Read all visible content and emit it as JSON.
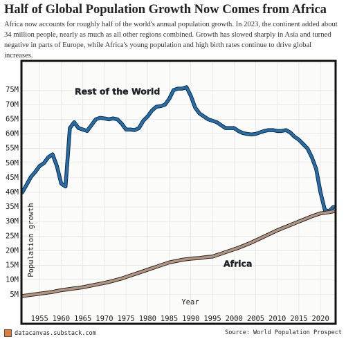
{
  "chart_data": {
    "type": "line",
    "title": "Half of Global Population Growth Now Comes from Africa",
    "subtitle": "Africa now accounts for roughly half of the world's annual population growth. In 2023, the continent added about 34 million people, nearly as much as all other regions combined. Growth has slowed sharply in Asia and turned negative in parts of Europe, while Africa's young population and high birth rates continue to drive global increases.",
    "x_label": "Year",
    "y_label": "Population growth",
    "x": [
      1951,
      1952,
      1953,
      1954,
      1955,
      1956,
      1957,
      1958,
      1959,
      1960,
      1961,
      1962,
      1963,
      1964,
      1965,
      1966,
      1967,
      1968,
      1969,
      1970,
      1971,
      1972,
      1973,
      1974,
      1975,
      1976,
      1977,
      1978,
      1979,
      1980,
      1981,
      1982,
      1983,
      1984,
      1985,
      1986,
      1987,
      1988,
      1989,
      1990,
      1991,
      1992,
      1993,
      1994,
      1995,
      1996,
      1997,
      1998,
      1999,
      2000,
      2001,
      2002,
      2003,
      2004,
      2005,
      2006,
      2007,
      2008,
      2009,
      2010,
      2011,
      2012,
      2013,
      2014,
      2015,
      2016,
      2017,
      2018,
      2019,
      2020,
      2021,
      2022,
      2023
    ],
    "series": [
      {
        "name": "Rest of the World",
        "color": "#1f6fb2",
        "values": [
          40,
          42.6,
          45.3,
          47,
          49,
          50,
          52,
          53,
          49,
          43,
          42,
          62,
          64,
          62,
          61.5,
          61,
          63,
          65,
          65.5,
          65.3,
          65,
          65.3,
          65,
          63.5,
          61.5,
          61.5,
          61.3,
          62,
          64.5,
          66,
          68,
          69.3,
          69.5,
          70,
          72,
          75,
          75.5,
          75.5,
          76,
          73,
          69,
          67,
          66,
          65,
          64.5,
          64,
          63,
          62,
          62,
          62,
          61,
          60.3,
          60,
          59.8,
          60,
          60.5,
          61,
          61.3,
          61.3,
          61,
          61,
          61.3,
          60.5,
          59,
          58,
          56.5,
          55,
          52,
          48,
          40,
          34,
          33.5,
          35
        ]
      },
      {
        "name": "Africa",
        "color": "#b8937a",
        "values": [
          4.5,
          4.7,
          4.9,
          5.1,
          5.3,
          5.5,
          5.7,
          5.9,
          6.2,
          6.5,
          6.7,
          6.9,
          7.1,
          7.3,
          7.5,
          7.8,
          8.1,
          8.4,
          8.7,
          9,
          9.3,
          9.7,
          10.1,
          10.5,
          11,
          11.5,
          12,
          12.5,
          13,
          13.5,
          14,
          14.5,
          15,
          15.5,
          16,
          16.3,
          16.6,
          16.9,
          17.1,
          17.3,
          17.4,
          17.5,
          17.7,
          17.9,
          18,
          18.5,
          19,
          19.5,
          20,
          20.5,
          21,
          21.6,
          22.2,
          22.8,
          23.5,
          24.2,
          24.9,
          25.6,
          26.3,
          27,
          27.6,
          28.2,
          28.8,
          29.4,
          30,
          30.6,
          31.2,
          31.8,
          32.3,
          32.8,
          33,
          33.2,
          33.5
        ]
      }
    ],
    "xlim": [
      1950.8,
      2023.5
    ],
    "ylim": [
      -5,
      85
    ],
    "xticks": [
      1955,
      1960,
      1965,
      1970,
      1975,
      1980,
      1985,
      1990,
      1995,
      2000,
      2005,
      2010,
      2015,
      2020
    ],
    "yticks": [
      {
        "value": 5,
        "label": "5M"
      },
      {
        "value": 10,
        "label": "10M"
      },
      {
        "value": 15,
        "label": "15M"
      },
      {
        "value": 20,
        "label": "20M"
      },
      {
        "value": 25,
        "label": "25M"
      },
      {
        "value": 30,
        "label": "30M"
      },
      {
        "value": 35,
        "label": "35M"
      },
      {
        "value": 40,
        "label": "40M"
      },
      {
        "value": 45,
        "label": "45M"
      },
      {
        "value": 50,
        "label": "50M"
      },
      {
        "value": 55,
        "label": "55M"
      },
      {
        "value": 60,
        "label": "60M"
      },
      {
        "value": 65,
        "label": "65M"
      },
      {
        "value": 70,
        "label": "70M"
      },
      {
        "value": 75,
        "label": "75M"
      }
    ],
    "grid": true,
    "footer_left": "datacanvas.substack.com",
    "footer_right": "Source: World Population Prospect"
  }
}
